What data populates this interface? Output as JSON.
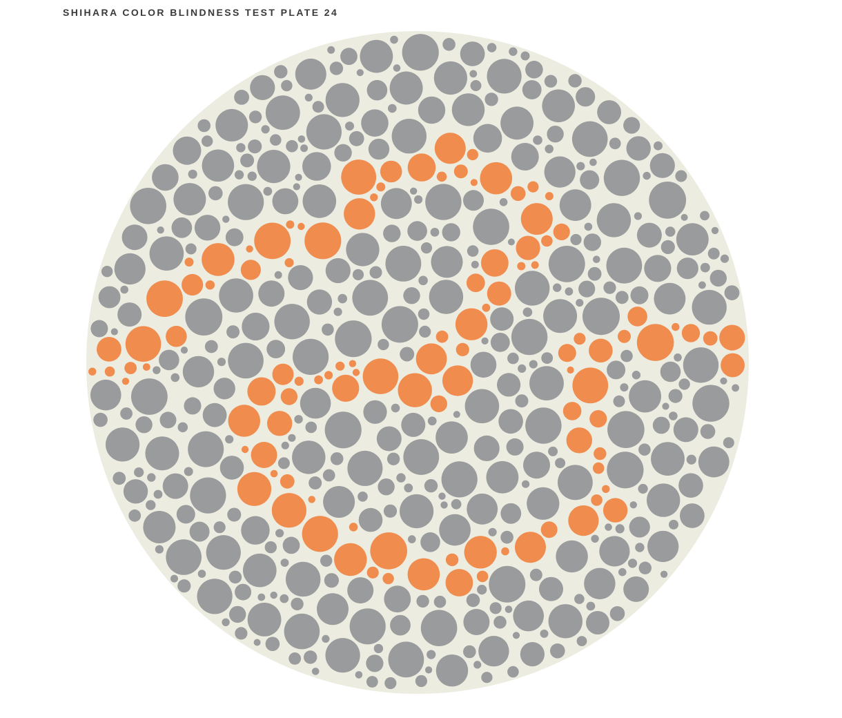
{
  "plate": {
    "title": "SHIHARA COLOR BLINDNESS TEST PLATE 24",
    "colors": {
      "background_dot": "#999b9c",
      "figure_dot": "#f08d4e",
      "gap_fill": "#ecece0",
      "page": "#ffffff"
    }
  }
}
